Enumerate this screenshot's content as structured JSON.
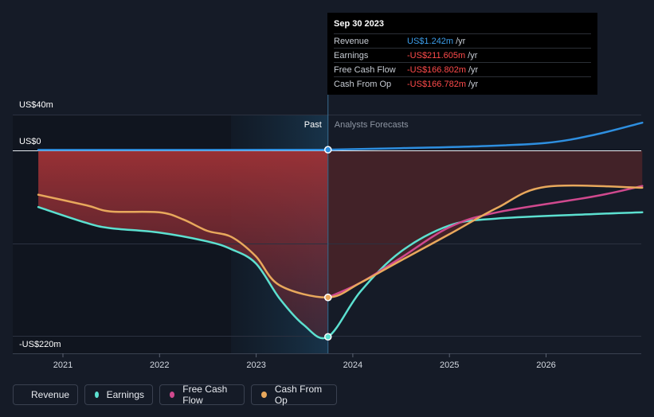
{
  "chart_data": {
    "type": "line",
    "y_unit": "US$m",
    "ylim": [
      -220,
      40
    ],
    "y_labels": [
      "US$40m",
      "US$0",
      "-US$220m"
    ],
    "x_ticks": [
      "2021",
      "2022",
      "2023",
      "2024",
      "2025",
      "2026"
    ],
    "divider_date": "2023-09-30",
    "past_label": "Past",
    "forecast_label": "Analysts Forecasts",
    "series": [
      {
        "name": "Revenue",
        "color": "#2e8fe0",
        "points": [
          [
            "2020-09-30",
            1.0
          ],
          [
            "2021-06-30",
            1.0
          ],
          [
            "2022-06-30",
            1.0
          ],
          [
            "2023-03-31",
            1.1
          ],
          [
            "2023-09-30",
            1.242
          ],
          [
            "2024-06-30",
            3.0
          ],
          [
            "2025-03-31",
            5.0
          ],
          [
            "2025-12-31",
            9.0
          ],
          [
            "2026-06-30",
            18.0
          ],
          [
            "2026-12-31",
            32.0
          ]
        ]
      },
      {
        "name": "Earnings",
        "color": "#5ce0d0",
        "points": [
          [
            "2020-09-30",
            -64
          ],
          [
            "2021-03-31",
            -82
          ],
          [
            "2021-06-30",
            -88
          ],
          [
            "2021-12-31",
            -93
          ],
          [
            "2022-06-30",
            -103
          ],
          [
            "2022-09-30",
            -112
          ],
          [
            "2022-12-31",
            -128
          ],
          [
            "2023-03-31",
            -168
          ],
          [
            "2023-06-30",
            -198
          ],
          [
            "2023-09-30",
            -211.605
          ],
          [
            "2024-01-31",
            -160
          ],
          [
            "2024-06-30",
            -115
          ],
          [
            "2024-12-31",
            -85
          ],
          [
            "2025-06-30",
            -77
          ],
          [
            "2026-06-30",
            -72
          ],
          [
            "2026-12-31",
            -70
          ]
        ]
      },
      {
        "name": "Free Cash Flow",
        "color": "#d0498e",
        "points": [
          [
            "2023-09-30",
            -166.802
          ],
          [
            "2024-01-31",
            -150
          ],
          [
            "2024-06-30",
            -122
          ],
          [
            "2024-12-31",
            -87
          ],
          [
            "2025-06-30",
            -70
          ],
          [
            "2026-06-30",
            -52
          ],
          [
            "2026-12-31",
            -40
          ]
        ]
      },
      {
        "name": "Cash From Op",
        "color": "#e8a85c",
        "points": [
          [
            "2020-09-30",
            -50
          ],
          [
            "2021-03-31",
            -62
          ],
          [
            "2021-06-30",
            -69
          ],
          [
            "2021-12-31",
            -70
          ],
          [
            "2022-03-31",
            -78
          ],
          [
            "2022-06-30",
            -91
          ],
          [
            "2022-09-30",
            -98
          ],
          [
            "2022-12-31",
            -120
          ],
          [
            "2023-03-31",
            -153
          ],
          [
            "2023-09-30",
            -166.782
          ],
          [
            "2024-01-31",
            -150
          ],
          [
            "2024-06-30",
            -125
          ],
          [
            "2024-12-31",
            -95
          ],
          [
            "2025-06-30",
            -65
          ],
          [
            "2025-12-31",
            -41
          ],
          [
            "2026-12-31",
            -42
          ]
        ]
      }
    ]
  },
  "tooltip": {
    "date": "Sep 30 2023",
    "rows": [
      {
        "name": "Revenue",
        "value": "US$1.242m",
        "unit": "/yr",
        "tone": "pos"
      },
      {
        "name": "Earnings",
        "value": "-US$211.605m",
        "unit": "/yr",
        "tone": "neg"
      },
      {
        "name": "Free Cash Flow",
        "value": "-US$166.802m",
        "unit": "/yr",
        "tone": "neg"
      },
      {
        "name": "Cash From Op",
        "value": "-US$166.782m",
        "unit": "/yr",
        "tone": "neg"
      }
    ]
  },
  "legend": [
    {
      "label": "Revenue",
      "color": "#2e8fe0"
    },
    {
      "label": "Earnings",
      "color": "#5ce0d0"
    },
    {
      "label": "Free Cash Flow",
      "color": "#d0498e"
    },
    {
      "label": "Cash From Op",
      "color": "#e8a85c"
    }
  ]
}
